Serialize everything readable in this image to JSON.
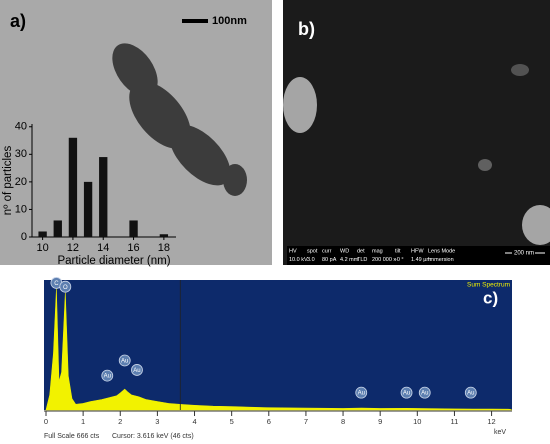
{
  "panels": {
    "a": {
      "label": "a)",
      "scale_bar": "100nm"
    },
    "b": {
      "label": "b)",
      "info": [
        {
          "header": "HV",
          "value": "10.0 kV"
        },
        {
          "header": "spot",
          "value": "3.0"
        },
        {
          "header": "curr",
          "value": "80 pA"
        },
        {
          "header": "WD",
          "value": "4.2 mm"
        },
        {
          "header": "det",
          "value": "TLD"
        },
        {
          "header": "mag",
          "value": "200 000 x"
        },
        {
          "header": "tilt",
          "value": "-0 °"
        },
        {
          "header": "HFW",
          "value": "1.49 µm"
        },
        {
          "header": "Lens Mode",
          "value": "Immersion"
        }
      ],
      "scale_bar": "200 nm"
    },
    "c": {
      "label": "c)",
      "spectrum_name": "Sum Spectrum",
      "full_scale": "Full Scale 666 cts",
      "cursor": "Cursor: 3.616 keV (46 cts)",
      "unit": "keV"
    }
  },
  "chart_data": [
    {
      "type": "bar",
      "xlabel": "Particle diameter (nm)",
      "ylabel": "nº of particles",
      "x": [
        10,
        11,
        12,
        13,
        14,
        16,
        18
      ],
      "values": [
        2,
        6,
        36,
        20,
        29,
        6,
        1
      ],
      "color": "#111111",
      "xlim": [
        9.3,
        18.8
      ],
      "xticks": [
        10,
        12,
        14,
        16,
        18
      ],
      "ylim": [
        0,
        41
      ],
      "yticks": [
        0,
        10,
        20,
        30,
        40
      ]
    },
    {
      "type": "area",
      "color": "#f2f200",
      "background": "#0d2a6b",
      "x": [
        0.1,
        0.2,
        0.28,
        0.35,
        0.42,
        0.52,
        0.6,
        0.7,
        0.8,
        1.0,
        1.2,
        1.5,
        1.7,
        1.9,
        2.0,
        2.12,
        2.2,
        2.3,
        2.5,
        2.7,
        3.0,
        3.3,
        3.6,
        4.0,
        4.5,
        5.0,
        5.5,
        6.0,
        7.0,
        8.0,
        8.5,
        9.0,
        9.7,
        10.0,
        10.5,
        11.0,
        11.5,
        12.0,
        12.5
      ],
      "values": [
        80,
        300,
        640,
        150,
        200,
        620,
        180,
        60,
        30,
        35,
        45,
        55,
        65,
        75,
        90,
        110,
        95,
        80,
        70,
        55,
        45,
        35,
        30,
        25,
        20,
        18,
        15,
        12,
        10,
        8,
        10,
        8,
        9,
        8,
        7,
        6,
        5,
        5,
        4
      ],
      "xlim": [
        0,
        12.55
      ],
      "xticks": [
        0,
        1,
        2,
        3,
        4,
        5,
        6,
        7,
        8,
        9,
        10,
        11,
        12
      ],
      "ylim": [
        0,
        666
      ],
      "cursor_x": 3.616,
      "peak_labels": [
        {
          "label": "C",
          "x": 0.28,
          "y": 640
        },
        {
          "label": "O",
          "x": 0.52,
          "y": 620
        },
        {
          "label": "Au",
          "x": 1.65,
          "y": 150
        },
        {
          "label": "Au",
          "x": 2.12,
          "y": 230
        },
        {
          "label": "Au",
          "x": 2.45,
          "y": 180
        },
        {
          "label": "Au",
          "x": 8.49,
          "y": 60
        },
        {
          "label": "Au",
          "x": 9.71,
          "y": 60
        },
        {
          "label": "Au",
          "x": 10.2,
          "y": 60
        },
        {
          "label": "Au",
          "x": 11.44,
          "y": 60
        }
      ]
    }
  ]
}
